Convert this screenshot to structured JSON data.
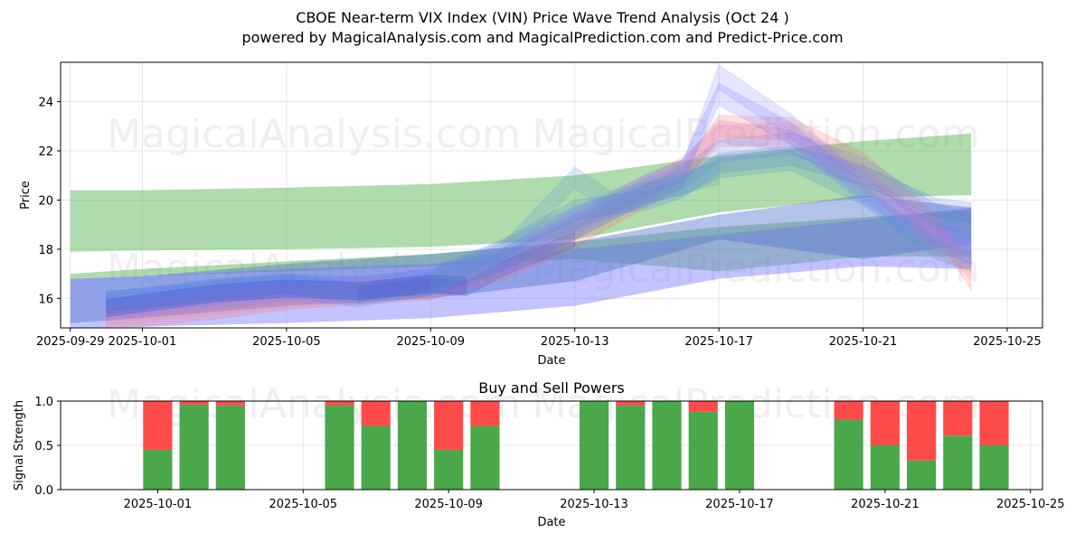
{
  "chart_data": [
    {
      "type": "area",
      "title_line1": "CBOE Near-term VIX Index (VIN) Price Wave Trend Analysis (Oct 24 )",
      "title_line2": "powered by MagicalAnalysis.com and MagicalPrediction.com and Predict-Price.com",
      "xlabel": "Date",
      "ylabel": "Price",
      "xlim": [
        "2025-09-28",
        "2025-10-25"
      ],
      "ylim": [
        14.8,
        25.6
      ],
      "x_ticks": [
        "2025-09-29",
        "2025-10-01",
        "2025-10-05",
        "2025-10-09",
        "2025-10-13",
        "2025-10-17",
        "2025-10-21",
        "2025-10-25"
      ],
      "y_ticks": [
        16,
        18,
        20,
        22,
        24
      ],
      "grid": true,
      "bands": [
        {
          "name": "green-upper-channel",
          "color": "#4daf4a",
          "x": [
            "2025-09-29",
            "2025-10-01",
            "2025-10-05",
            "2025-10-09",
            "2025-10-13",
            "2025-10-17",
            "2025-10-21",
            "2025-10-24"
          ],
          "low": [
            17.9,
            17.95,
            18.0,
            18.1,
            18.4,
            19.5,
            20.1,
            20.2
          ],
          "high": [
            20.4,
            20.4,
            20.5,
            20.65,
            21.0,
            21.8,
            22.4,
            22.7
          ]
        },
        {
          "name": "green-lower-channel",
          "color": "#4daf4a",
          "x": [
            "2025-09-29",
            "2025-10-01",
            "2025-10-05",
            "2025-10-09",
            "2025-10-13",
            "2025-10-17",
            "2025-10-21",
            "2025-10-24"
          ],
          "low": [
            16.8,
            16.9,
            17.1,
            17.3,
            17.6,
            17.1,
            17.7,
            17.7
          ],
          "high": [
            17.0,
            17.2,
            17.5,
            17.8,
            18.3,
            18.9,
            19.3,
            19.6
          ]
        },
        {
          "name": "blue-lower-channel",
          "color": "#7b7bff",
          "x": [
            "2025-09-29",
            "2025-10-01",
            "2025-10-05",
            "2025-10-09",
            "2025-10-13",
            "2025-10-17",
            "2025-10-21",
            "2025-10-24"
          ],
          "low": [
            14.8,
            14.85,
            15.0,
            15.2,
            15.7,
            16.8,
            17.3,
            17.2
          ],
          "high": [
            16.8,
            16.9,
            17.2,
            17.4,
            18.0,
            18.6,
            19.2,
            19.7
          ]
        },
        {
          "name": "blue-main-channel",
          "color": "#5577cc",
          "x": [
            "2025-09-29",
            "2025-10-01",
            "2025-10-05",
            "2025-10-09",
            "2025-10-13",
            "2025-10-17",
            "2025-10-21",
            "2025-10-24"
          ],
          "low": [
            15.0,
            15.2,
            15.7,
            16.0,
            16.7,
            18.4,
            17.6,
            18.2
          ],
          "high": [
            16.8,
            16.9,
            17.4,
            17.8,
            18.3,
            19.4,
            20.2,
            19.7
          ]
        }
      ],
      "waves": [
        {
          "name": "red-wave-1",
          "color": "#ff6b6b",
          "x": [
            "2025-09-30",
            "2025-10-01",
            "2025-10-03",
            "2025-10-05",
            "2025-10-07",
            "2025-10-09",
            "2025-10-11",
            "2025-10-13",
            "2025-10-15",
            "2025-10-16",
            "2025-10-17",
            "2025-10-19",
            "2025-10-21",
            "2025-10-23",
            "2025-10-24"
          ],
          "y": [
            15.2,
            15.3,
            15.6,
            16.0,
            16.2,
            16.4,
            17.2,
            18.5,
            20.2,
            21.0,
            23.0,
            22.9,
            21.5,
            19.0,
            16.8
          ],
          "width": 0.9
        },
        {
          "name": "red-wave-2",
          "color": "#ff8a8a",
          "x": [
            "2025-09-30",
            "2025-10-01",
            "2025-10-03",
            "2025-10-05",
            "2025-10-07",
            "2025-10-09",
            "2025-10-11",
            "2025-10-13",
            "2025-10-15",
            "2025-10-16",
            "2025-10-17",
            "2025-10-19",
            "2025-10-21",
            "2025-10-23",
            "2025-10-24"
          ],
          "y": [
            15.4,
            15.5,
            15.8,
            16.1,
            16.3,
            16.5,
            17.4,
            18.8,
            20.5,
            21.3,
            22.6,
            22.7,
            21.0,
            18.3,
            17.3
          ],
          "width": 0.9
        },
        {
          "name": "purple-wave-1",
          "color": "#c080d0",
          "x": [
            "2025-09-30",
            "2025-10-01",
            "2025-10-03",
            "2025-10-05",
            "2025-10-07",
            "2025-10-09",
            "2025-10-11",
            "2025-10-13",
            "2025-10-15",
            "2025-10-16",
            "2025-10-17",
            "2025-10-19",
            "2025-10-21",
            "2025-10-23",
            "2025-10-24"
          ],
          "y": [
            15.6,
            15.7,
            16.0,
            16.3,
            16.2,
            16.6,
            17.6,
            19.0,
            20.6,
            21.2,
            22.8,
            22.4,
            20.8,
            18.6,
            17.8
          ],
          "width": 0.9
        },
        {
          "name": "blue-peak-wave-1",
          "color": "#8a8aff",
          "x": [
            "2025-09-30",
            "2025-10-01",
            "2025-10-03",
            "2025-10-05",
            "2025-10-07",
            "2025-10-09",
            "2025-10-11",
            "2025-10-13",
            "2025-10-15",
            "2025-10-16",
            "2025-10-17",
            "2025-10-19",
            "2025-10-21",
            "2025-10-23",
            "2025-10-24"
          ],
          "y": [
            15.6,
            15.8,
            16.1,
            16.4,
            16.3,
            16.6,
            17.4,
            18.9,
            20.4,
            21.0,
            25.0,
            23.0,
            20.5,
            18.4,
            17.9
          ],
          "width": 1.0
        },
        {
          "name": "blue-peak-wave-2",
          "color": "#7a7aff",
          "x": [
            "2025-09-30",
            "2025-10-01",
            "2025-10-03",
            "2025-10-05",
            "2025-10-07",
            "2025-10-09",
            "2025-10-11",
            "2025-10-13",
            "2025-10-15",
            "2025-10-16",
            "2025-10-17",
            "2025-10-19",
            "2025-10-21",
            "2025-10-23",
            "2025-10-24"
          ],
          "y": [
            15.7,
            15.9,
            16.2,
            16.5,
            16.4,
            16.7,
            17.6,
            19.2,
            20.6,
            21.2,
            24.3,
            22.7,
            20.3,
            18.6,
            18.2
          ],
          "width": 0.9
        },
        {
          "name": "blue-wave-3",
          "color": "#6a8aee",
          "x": [
            "2025-09-30",
            "2025-10-01",
            "2025-10-03",
            "2025-10-05",
            "2025-10-07",
            "2025-10-09",
            "2025-10-11",
            "2025-10-13",
            "2025-10-15",
            "2025-10-16",
            "2025-10-17",
            "2025-10-19",
            "2025-10-21",
            "2025-10-23",
            "2025-10-24"
          ],
          "y": [
            15.8,
            16.0,
            16.3,
            16.5,
            16.1,
            16.6,
            17.9,
            19.3,
            20.2,
            20.9,
            22.0,
            22.3,
            21.3,
            19.4,
            19.0
          ],
          "width": 0.9
        },
        {
          "name": "blue-wave-4",
          "color": "#5a7ae0",
          "x": [
            "2025-09-30",
            "2025-10-01",
            "2025-10-03",
            "2025-10-05",
            "2025-10-07",
            "2025-10-09",
            "2025-10-11",
            "2025-10-13",
            "2025-10-15",
            "2025-10-16",
            "2025-10-17",
            "2025-10-19",
            "2025-10-21",
            "2025-10-23",
            "2025-10-24"
          ],
          "y": [
            15.9,
            16.0,
            16.4,
            16.6,
            16.5,
            16.8,
            18.0,
            19.6,
            20.0,
            20.5,
            21.5,
            21.8,
            21.0,
            19.7,
            19.5
          ],
          "width": 0.8
        },
        {
          "name": "teal-wave-1",
          "color": "#4a90c8",
          "x": [
            "2025-09-30",
            "2025-10-01",
            "2025-10-03",
            "2025-10-05",
            "2025-10-07",
            "2025-10-09",
            "2025-10-11",
            "2025-10-13",
            "2025-10-15",
            "2025-10-16",
            "2025-10-17",
            "2025-10-19",
            "2025-10-21",
            "2025-10-23",
            "2025-10-24"
          ],
          "y": [
            15.9,
            16.0,
            16.3,
            16.6,
            16.2,
            16.5,
            17.5,
            18.8,
            20.3,
            20.6,
            21.3,
            21.6,
            20.2,
            18.0,
            17.5
          ],
          "width": 0.8
        },
        {
          "name": "dark-blue-wave",
          "color": "#2a3acc",
          "x": [
            "2025-09-30",
            "2025-10-01",
            "2025-10-03",
            "2025-10-05",
            "2025-10-07",
            "2025-10-09",
            "2025-10-10"
          ],
          "y": [
            15.6,
            15.8,
            16.2,
            16.4,
            16.3,
            16.6,
            16.5
          ],
          "width": 0.7
        },
        {
          "name": "steel-wave-early",
          "color": "#3a5ad8",
          "x": [
            "2025-10-07",
            "2025-10-09",
            "2025-10-10",
            "2025-10-11",
            "2025-10-13"
          ],
          "y": [
            16.2,
            16.5,
            16.4,
            17.2,
            18.4
          ],
          "width": 0.6
        },
        {
          "name": "teal-peak-wave",
          "color": "#5a9acc",
          "x": [
            "2025-10-09",
            "2025-10-11",
            "2025-10-13",
            "2025-10-14",
            "2025-10-15",
            "2025-10-17"
          ],
          "y": [
            16.6,
            17.8,
            20.9,
            19.9,
            20.3,
            21.1
          ],
          "width": 0.9
        }
      ]
    },
    {
      "type": "bar",
      "title": "Buy and Sell Powers",
      "xlabel": "Date",
      "ylabel": "Signal Strength",
      "xlim": [
        "2025-09-28",
        "2025-10-25"
      ],
      "ylim": [
        0.0,
        1.0
      ],
      "x_ticks": [
        "2025-10-01",
        "2025-10-05",
        "2025-10-09",
        "2025-10-13",
        "2025-10-17",
        "2025-10-21",
        "2025-10-25"
      ],
      "y_ticks": [
        0.0,
        0.5,
        1.0
      ],
      "grid": true,
      "colors": {
        "buy": "#4aa84a",
        "sell": "#ff4a4a"
      },
      "series": [
        {
          "name": "buy",
          "values": [
            0.45,
            0.96,
            0.95,
            0.95,
            0.72,
            1.0,
            0.45,
            0.72,
            1.0,
            0.95,
            1.0,
            0.88,
            1.0,
            0.79,
            0.5,
            0.33,
            0.61,
            0.5
          ]
        },
        {
          "name": "sell",
          "values": [
            0.55,
            0.04,
            0.05,
            0.05,
            0.28,
            0.0,
            0.55,
            0.28,
            0.0,
            0.05,
            0.0,
            0.12,
            0.0,
            0.21,
            0.5,
            0.67,
            0.39,
            0.5
          ]
        }
      ],
      "dates": [
        "2025-10-01",
        "2025-10-02",
        "2025-10-03",
        "2025-10-06",
        "2025-10-07",
        "2025-10-08",
        "2025-10-09",
        "2025-10-10",
        "2025-10-13",
        "2025-10-14",
        "2025-10-15",
        "2025-10-16",
        "2025-10-17",
        "2025-10-20",
        "2025-10-21",
        "2025-10-22",
        "2025-10-23",
        "2025-10-24"
      ]
    }
  ],
  "watermarks": [
    "MagicalAnalysis.com",
    "MagicalPrediction.com"
  ]
}
